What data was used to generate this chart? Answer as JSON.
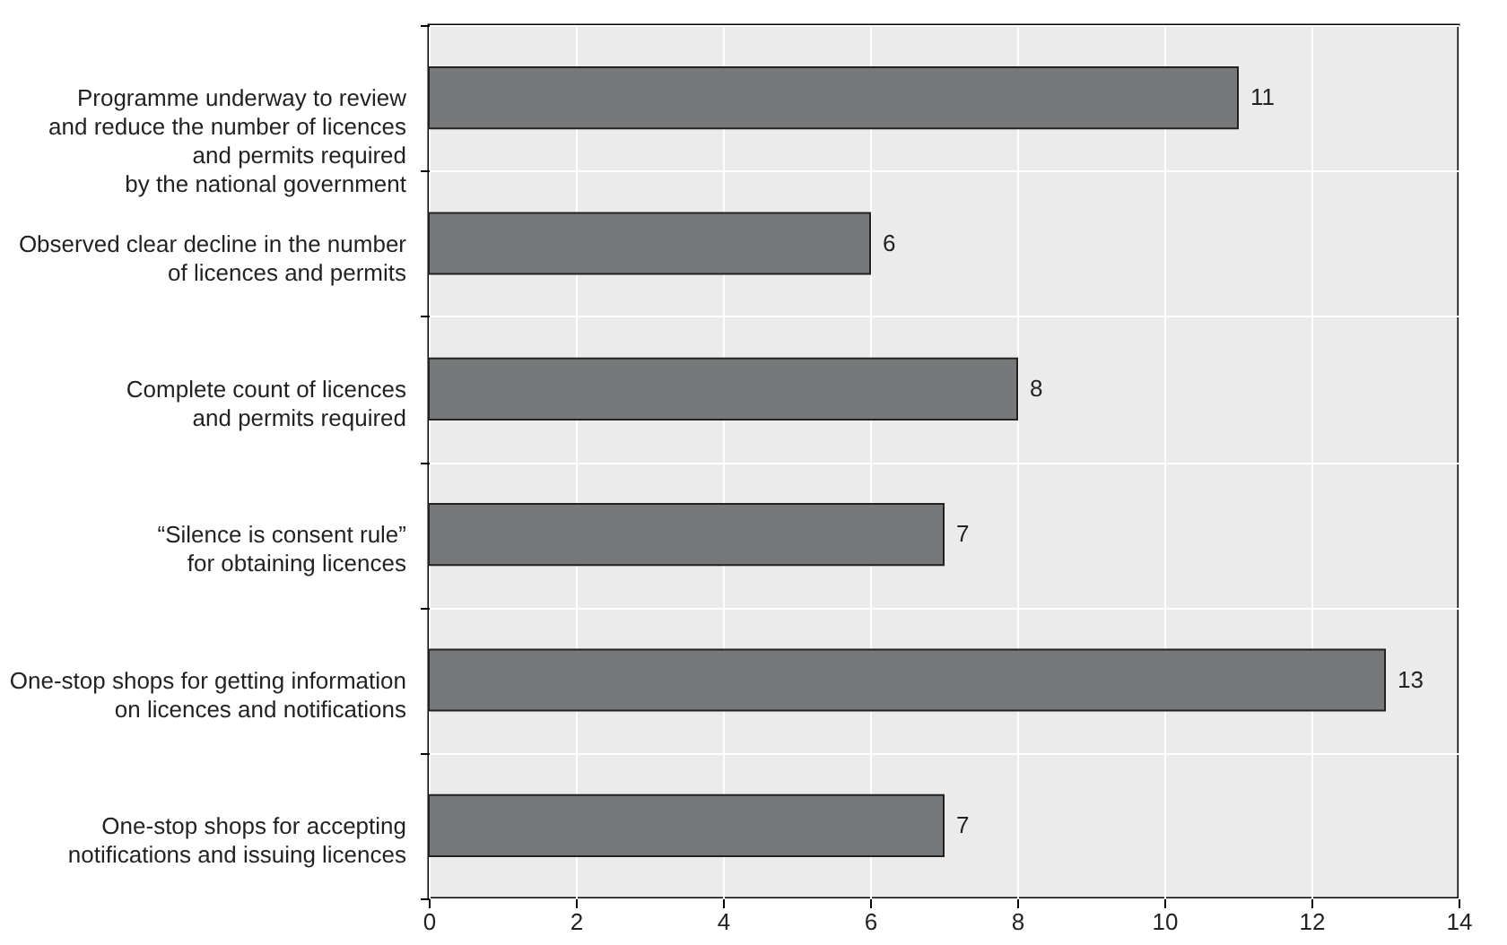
{
  "chart_data": {
    "type": "bar",
    "orientation": "horizontal",
    "categories": [
      "Programme underway to review\nand reduce the number of licences\nand permits required\nby the national government",
      "Observed clear decline in the number\nof licences and permits",
      "Complete count of licences\nand permits required",
      "“Silence is consent rule”\nfor obtaining licences",
      "One-stop shops for getting information\non licences and notifications",
      "One-stop shops for accepting\nnotifications and issuing licences"
    ],
    "values": [
      11,
      6,
      8,
      7,
      13,
      7
    ],
    "color": "#77787a",
    "xlim": [
      0,
      14
    ],
    "xticks": [
      0,
      2,
      4,
      6,
      8,
      10,
      12,
      14
    ],
    "grid": true,
    "data_labels": true
  }
}
